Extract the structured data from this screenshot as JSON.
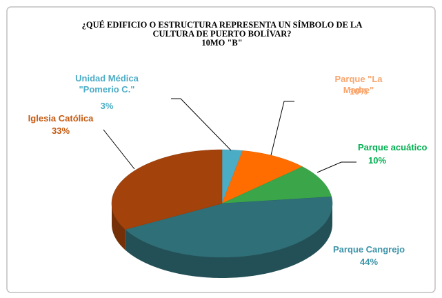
{
  "chart_data": {
    "type": "pie3d",
    "title": "¿QUÉ EDIFICIO O ESTRUCTURA REPRESENTA UN SÍMBOLO DE LA CULTURA DE PUERTO BOLÍVAR?",
    "subtitle": "10MO \"B\"",
    "categories": [
      "Unidad Médica \"Pomerio C.\"",
      "Parque \"La Madre\"",
      "Parque acuático",
      "Parque Cangrejo",
      "Iglesia Católica"
    ],
    "values": [
      3,
      10,
      10,
      44,
      33
    ],
    "value_labels": [
      "3%",
      "10%",
      "10%",
      "44%",
      "33%"
    ],
    "colors": [
      "#4bacc6",
      "#ff6d00",
      "#3ba54a",
      "#2f6f78",
      "#a3420b"
    ],
    "label_colors": [
      "#4bacc6",
      "#f9a56d",
      "#00b050",
      "#3d93a8",
      "#c55a11"
    ]
  }
}
